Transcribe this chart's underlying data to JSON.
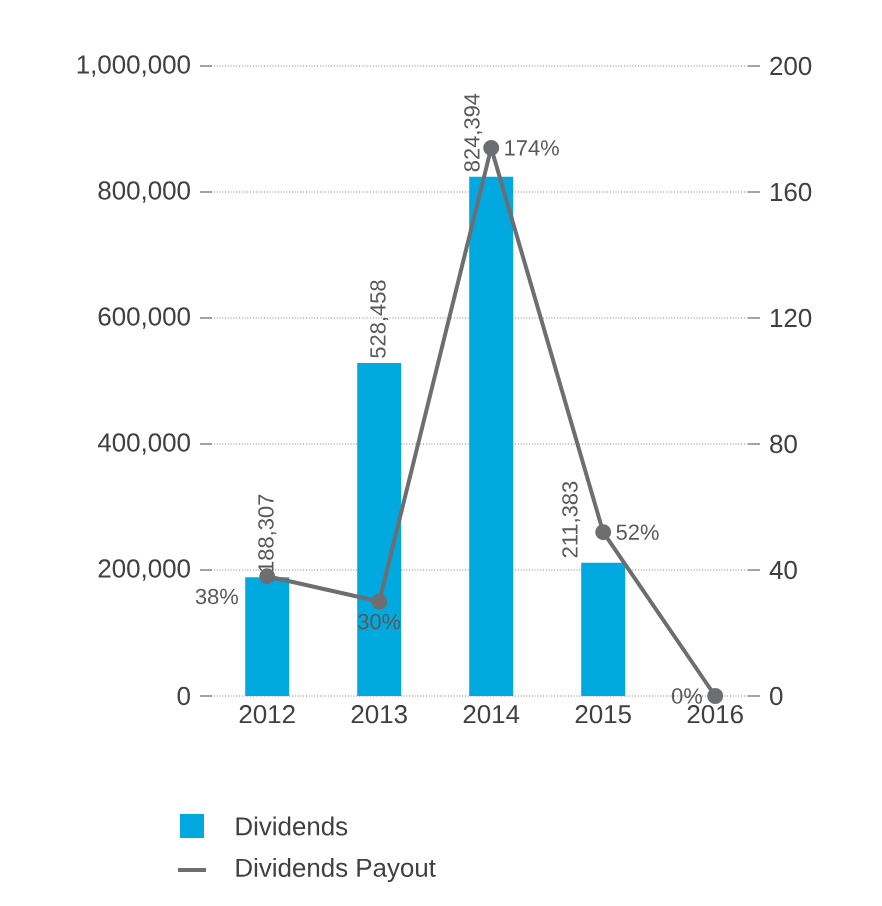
{
  "chart_data": {
    "type": "bar",
    "categories": [
      "2012",
      "2013",
      "2014",
      "2015",
      "2016"
    ],
    "series": [
      {
        "name": "Dividends",
        "color": "#00a9e0",
        "values": [
          188307,
          528458,
          824394,
          211383,
          null
        ],
        "value_labels": [
          "188,307",
          "528,458",
          "824,394",
          "211,383",
          null
        ]
      },
      {
        "name": "Dividends Payout",
        "type": "line",
        "axis": "y2",
        "color": "#6d6e71",
        "values": [
          38,
          30,
          174,
          52,
          0
        ],
        "value_labels": [
          "38%",
          "30%",
          "174%",
          "52%",
          "0%"
        ]
      }
    ],
    "ylim": [
      0,
      1000000
    ],
    "yticks": [
      {
        "value": 0,
        "label": "0"
      },
      {
        "value": 200000,
        "label": "200,000"
      },
      {
        "value": 400000,
        "label": "400,000"
      },
      {
        "value": 600000,
        "label": "600,000"
      },
      {
        "value": 800000,
        "label": "800,000"
      },
      {
        "value": 1000000,
        "label": "1,000,000"
      }
    ],
    "y2lim": [
      0,
      200
    ],
    "y2ticks": [
      0,
      40,
      80,
      120,
      160,
      200
    ],
    "grid": "y",
    "legend": "bottom",
    "marker": "circle",
    "line_style": "solid"
  }
}
